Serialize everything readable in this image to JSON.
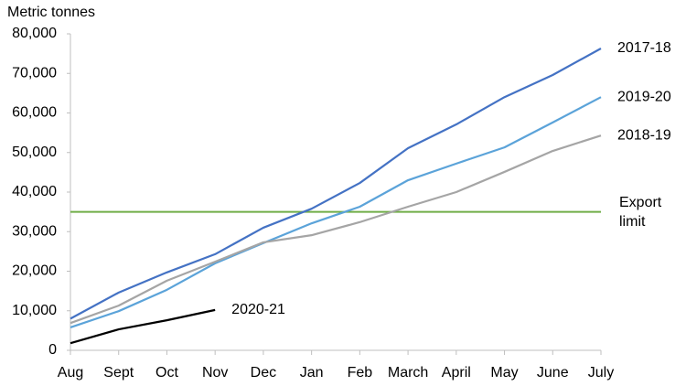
{
  "chart_data": {
    "type": "line",
    "y_axis_label": "Metric tonnes",
    "categories": [
      "Aug",
      "Sept",
      "Oct",
      "Nov",
      "Dec",
      "Jan",
      "Feb",
      "March",
      "April",
      "May",
      "June",
      "July"
    ],
    "series": [
      {
        "name": "2017-18",
        "color": "#4472c4",
        "values": [
          8000,
          14600,
          19700,
          24300,
          31000,
          35800,
          42300,
          51100,
          57100,
          64000,
          69600,
          76300
        ]
      },
      {
        "name": "2019-20",
        "color": "#5ba3d9",
        "values": [
          5800,
          9900,
          15300,
          22000,
          27100,
          32100,
          36300,
          43000,
          47200,
          51300,
          57600,
          64000
        ]
      },
      {
        "name": "2018-19",
        "color": "#a5a5a5",
        "values": [
          6900,
          11300,
          17600,
          22400,
          27300,
          29100,
          32400,
          36300,
          40000,
          45100,
          50400,
          54300
        ]
      },
      {
        "name": "2020-21",
        "color": "#000000",
        "values": [
          1800,
          5300,
          7600,
          10200,
          null,
          null,
          null,
          null,
          null,
          null,
          null,
          null
        ]
      }
    ],
    "reference_lines": [
      {
        "value": 35000,
        "label": "Export limit",
        "color": "#70ad47"
      }
    ],
    "ylim": [
      0,
      80000
    ],
    "yticks": [
      0,
      {
        "value": 10000,
        "label": "10,000"
      },
      {
        "value": 20000,
        "label": "20,000"
      },
      {
        "value": 30000,
        "label": "30,000"
      },
      {
        "value": 40000,
        "label": "40,000"
      },
      {
        "value": 50000,
        "label": "50,000"
      },
      {
        "value": 60000,
        "label": "60,000"
      },
      {
        "value": 70000,
        "label": "70,000"
      },
      {
        "value": 80000,
        "label": "80,000"
      }
    ],
    "grid": false
  }
}
